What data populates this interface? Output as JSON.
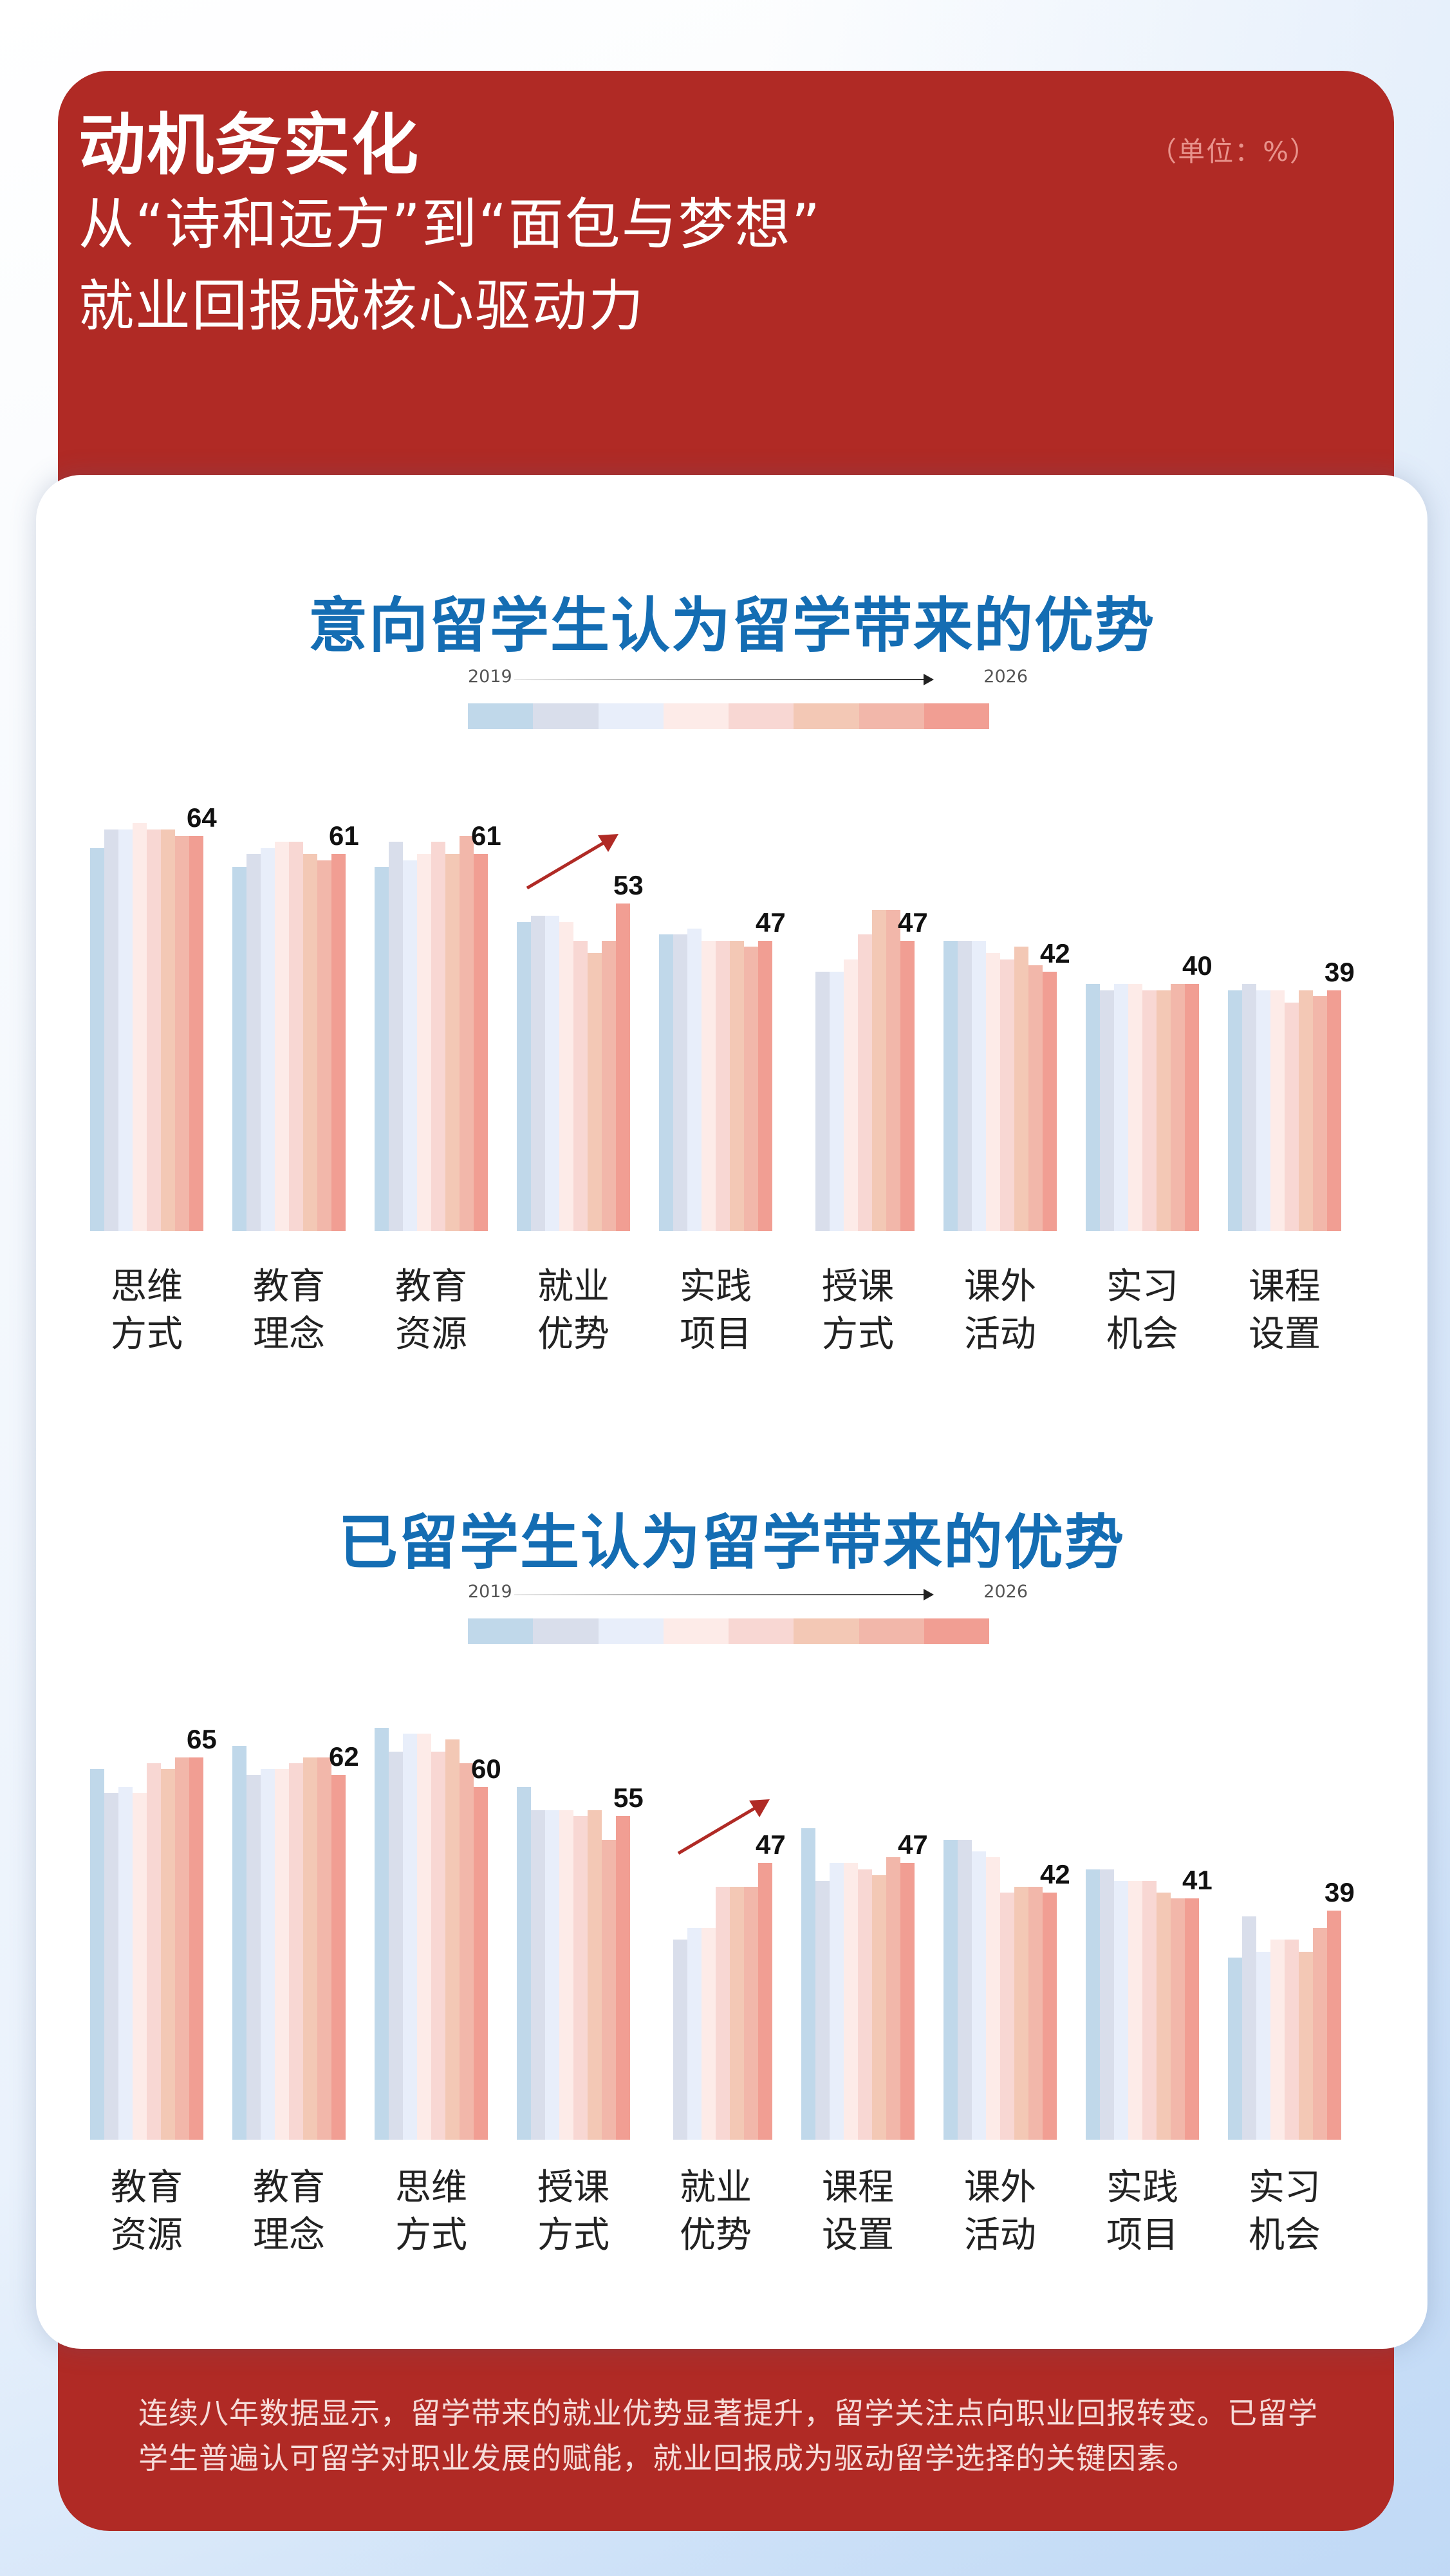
{
  "header": {
    "unit": "（单位：%）",
    "title": "动机务实化",
    "subtitle_line1": "从“诗和远方”到“面包与梦想”",
    "subtitle_line2": "就业回报成核心驱动力"
  },
  "legend": {
    "start_year": "2019",
    "end_year": "2026",
    "colors": [
      "#c0d8ea",
      "#d9deeb",
      "#e8eefa",
      "#fdebe8",
      "#f8d7d3",
      "#f3c8b5",
      "#f2b7aa",
      "#f19e93"
    ]
  },
  "footer": {
    "text": "连续八年数据显示，留学带来的就业优势显著提升，留学关注点向职业回报转变。已留学学生普遍认可留学对职业发展的赋能，就业回报成为驱动留学选择的关键因素。"
  },
  "chart_data": [
    {
      "type": "bar",
      "title": "意向留学生认为留学带来的优势",
      "unit": "%",
      "series_years": [
        "2019",
        "2020",
        "2021",
        "2022",
        "2023",
        "2024",
        "2025",
        "2026"
      ],
      "categories": [
        "思维方式",
        "教育理念",
        "教育资源",
        "就业优势",
        "实践项目",
        "授课方式",
        "课外活动",
        "实习机会",
        "课程设置"
      ],
      "category_lines": [
        [
          "思维",
          "方式"
        ],
        [
          "教育",
          "理念"
        ],
        [
          "教育",
          "资源"
        ],
        [
          "就业",
          "优势"
        ],
        [
          "实践",
          "项目"
        ],
        [
          "授课",
          "方式"
        ],
        [
          "课外",
          "活动"
        ],
        [
          "实习",
          "机会"
        ],
        [
          "课程",
          "设置"
        ]
      ],
      "values": [
        [
          62,
          65,
          65,
          66,
          65,
          65,
          64,
          64
        ],
        [
          59,
          61,
          62,
          63,
          63,
          61,
          60,
          61
        ],
        [
          59,
          63,
          60,
          61,
          63,
          61,
          64,
          61
        ],
        [
          50,
          51,
          51,
          50,
          47,
          45,
          47,
          53
        ],
        [
          48,
          48,
          49,
          47,
          47,
          47,
          46,
          47
        ],
        [
          null,
          42,
          42,
          44,
          48,
          52,
          52,
          47
        ],
        [
          47,
          47,
          47,
          45,
          44,
          46,
          43,
          42
        ],
        [
          40,
          39,
          40,
          40,
          39,
          39,
          40,
          40
        ],
        [
          39,
          40,
          39,
          39,
          37,
          39,
          38,
          39
        ]
      ],
      "labels_2026": [
        "64",
        "61",
        "61",
        "53",
        "47",
        "47",
        "42",
        "40",
        "39"
      ],
      "highlight_category": "就业优势",
      "xlabel": "",
      "ylabel": "",
      "ylim": [
        0,
        70
      ],
      "grid": false,
      "legend_position": "top"
    },
    {
      "type": "bar",
      "title": "已留学生认为留学带来的优势",
      "unit": "%",
      "series_years": [
        "2019",
        "2020",
        "2021",
        "2022",
        "2023",
        "2024",
        "2025",
        "2026"
      ],
      "categories": [
        "教育资源",
        "教育理念",
        "思维方式",
        "授课方式",
        "就业优势",
        "课程设置",
        "课外活动",
        "实践项目",
        "实习机会"
      ],
      "category_lines": [
        [
          "教育",
          "资源"
        ],
        [
          "教育",
          "理念"
        ],
        [
          "思维",
          "方式"
        ],
        [
          "授课",
          "方式"
        ],
        [
          "就业",
          "优势"
        ],
        [
          "课程",
          "设置"
        ],
        [
          "课外",
          "活动"
        ],
        [
          "实践",
          "项目"
        ],
        [
          "实习",
          "机会"
        ]
      ],
      "values": [
        [
          63,
          59,
          60,
          59,
          64,
          63,
          65,
          65
        ],
        [
          67,
          62,
          63,
          63,
          64,
          65,
          65,
          62
        ],
        [
          70,
          66,
          69,
          69,
          66,
          68,
          64,
          60
        ],
        [
          60,
          56,
          56,
          56,
          55,
          56,
          51,
          55
        ],
        [
          null,
          34,
          36,
          36,
          43,
          43,
          43,
          47
        ],
        [
          53,
          44,
          47,
          47,
          46,
          45,
          48,
          47
        ],
        [
          51,
          51,
          49,
          48,
          42,
          43,
          43,
          42
        ],
        [
          46,
          46,
          44,
          44,
          44,
          42,
          41,
          41
        ],
        [
          31,
          38,
          32,
          34,
          34,
          32,
          36,
          39
        ]
      ],
      "labels_2026": [
        "65",
        "62",
        "60",
        "55",
        "47",
        "47",
        "42",
        "41",
        "39"
      ],
      "highlight_category": "就业优势",
      "xlabel": "",
      "ylabel": "",
      "ylim": [
        0,
        72
      ],
      "grid": false,
      "legend_position": "top"
    }
  ]
}
